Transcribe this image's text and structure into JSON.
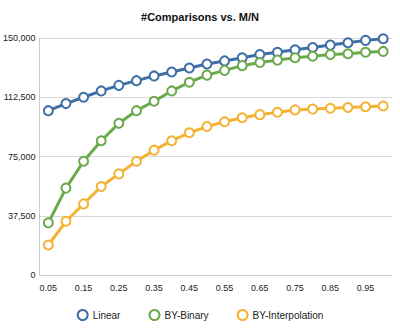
{
  "chart_data": {
    "type": "line",
    "title": "#Comparisons vs. M/N",
    "categories": [
      "0.05",
      null,
      "0.15",
      null,
      "0.25",
      null,
      "0.35",
      null,
      "0.45",
      null,
      "0.55",
      null,
      "0.65",
      null,
      "0.75",
      null,
      "0.85",
      null,
      "0.95",
      null
    ],
    "series": [
      {
        "name": "Linear",
        "color": "#3d6fa6",
        "marker": "circle",
        "values": [
          104000,
          108500,
          112500,
          116500,
          120000,
          123000,
          126000,
          128500,
          131000,
          133500,
          135500,
          137500,
          139500,
          141000,
          142500,
          144000,
          145500,
          147000,
          148500,
          149500
        ]
      },
      {
        "name": "BY-Binary",
        "color": "#6aaa4a",
        "marker": "circle",
        "values": [
          33000,
          55000,
          72000,
          85000,
          96000,
          104000,
          110000,
          116500,
          122000,
          126500,
          129500,
          132500,
          134500,
          136000,
          137500,
          138500,
          139500,
          140000,
          141000,
          141500
        ]
      },
      {
        "name": "BY-Interpolation",
        "color": "#f4b233",
        "marker": "circle",
        "values": [
          19000,
          34000,
          45000,
          56000,
          64000,
          72000,
          79000,
          85000,
          90000,
          94000,
          97000,
          99500,
          101500,
          103000,
          104500,
          105000,
          105500,
          106000,
          106500,
          107000
        ]
      }
    ],
    "ylim": [
      0,
      150000
    ],
    "yticks": [
      0,
      37500,
      75000,
      112500,
      150000
    ],
    "grid": true,
    "legend": "bottom"
  }
}
